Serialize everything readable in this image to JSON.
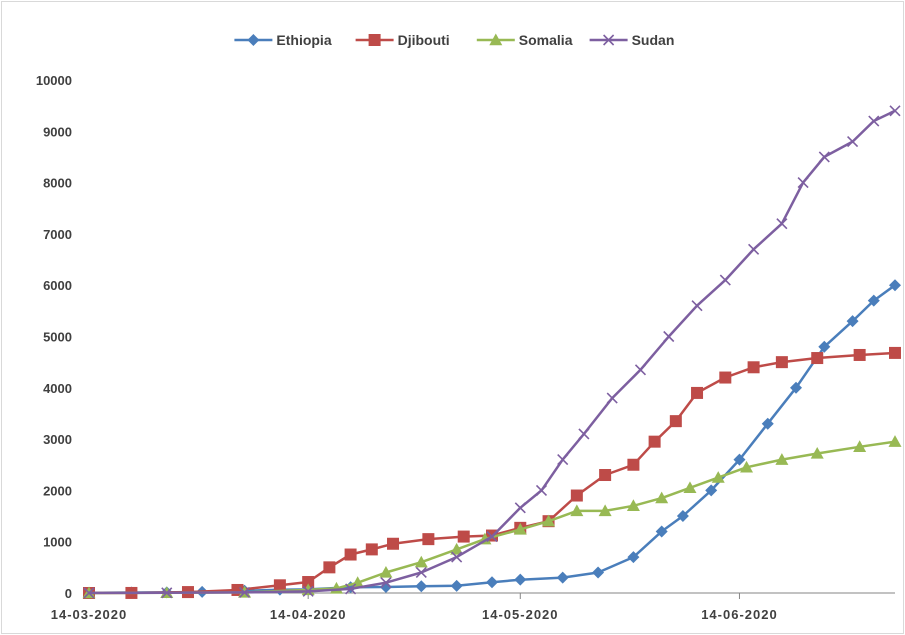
{
  "chart_data": {
    "type": "line",
    "title": "",
    "xlabel": "",
    "ylabel": "",
    "ylim": [
      0,
      10000
    ],
    "y_ticks": [
      0,
      1000,
      2000,
      3000,
      4000,
      5000,
      6000,
      7000,
      8000,
      9000,
      10000
    ],
    "x_range": [
      "2020-03-14",
      "2020-07-06"
    ],
    "x_ticks": [
      "14-03-2020",
      "14-04-2020",
      "14-05-2020",
      "14-06-2020"
    ],
    "grid": false,
    "legend_position": "top",
    "series": [
      {
        "name": "Ethiopia",
        "color": "#4a7ebb",
        "marker": "diamond",
        "points": [
          [
            "2020-03-14",
            1
          ],
          [
            "2020-03-20",
            9
          ],
          [
            "2020-03-25",
            12
          ],
          [
            "2020-03-30",
            21
          ],
          [
            "2020-04-05",
            43
          ],
          [
            "2020-04-10",
            65
          ],
          [
            "2020-04-14",
            71
          ],
          [
            "2020-04-20",
            111
          ],
          [
            "2020-04-25",
            116
          ],
          [
            "2020-04-30",
            131
          ],
          [
            "2020-05-05",
            140
          ],
          [
            "2020-05-10",
            210
          ],
          [
            "2020-05-14",
            260
          ],
          [
            "2020-05-20",
            300
          ],
          [
            "2020-05-25",
            400
          ],
          [
            "2020-05-30",
            700
          ],
          [
            "2020-06-03",
            1200
          ],
          [
            "2020-06-06",
            1500
          ],
          [
            "2020-06-10",
            2000
          ],
          [
            "2020-06-14",
            2600
          ],
          [
            "2020-06-18",
            3300
          ],
          [
            "2020-06-22",
            4000
          ],
          [
            "2020-06-26",
            4800
          ],
          [
            "2020-06-30",
            5300
          ],
          [
            "2020-07-03",
            5700
          ],
          [
            "2020-07-06",
            6000
          ]
        ]
      },
      {
        "name": "Djibouti",
        "color": "#be4b48",
        "marker": "square",
        "points": [
          [
            "2020-03-14",
            0
          ],
          [
            "2020-03-20",
            1
          ],
          [
            "2020-03-28",
            18
          ],
          [
            "2020-04-04",
            59
          ],
          [
            "2020-04-10",
            150
          ],
          [
            "2020-04-14",
            214
          ],
          [
            "2020-04-17",
            500
          ],
          [
            "2020-04-20",
            750
          ],
          [
            "2020-04-23",
            850
          ],
          [
            "2020-04-26",
            960
          ],
          [
            "2020-05-01",
            1050
          ],
          [
            "2020-05-06",
            1100
          ],
          [
            "2020-05-10",
            1120
          ],
          [
            "2020-05-14",
            1270
          ],
          [
            "2020-05-18",
            1400
          ],
          [
            "2020-05-22",
            1900
          ],
          [
            "2020-05-26",
            2300
          ],
          [
            "2020-05-30",
            2500
          ],
          [
            "2020-06-02",
            2950
          ],
          [
            "2020-06-05",
            3350
          ],
          [
            "2020-06-08",
            3900
          ],
          [
            "2020-06-12",
            4200
          ],
          [
            "2020-06-16",
            4400
          ],
          [
            "2020-06-20",
            4500
          ],
          [
            "2020-06-25",
            4580
          ],
          [
            "2020-07-01",
            4640
          ],
          [
            "2020-07-06",
            4680
          ]
        ]
      },
      {
        "name": "Somalia",
        "color": "#98b954",
        "marker": "triangle",
        "points": [
          [
            "2020-03-14",
            0
          ],
          [
            "2020-03-25",
            3
          ],
          [
            "2020-04-05",
            12
          ],
          [
            "2020-04-14",
            60
          ],
          [
            "2020-04-18",
            90
          ],
          [
            "2020-04-21",
            200
          ],
          [
            "2020-04-25",
            400
          ],
          [
            "2020-04-30",
            600
          ],
          [
            "2020-05-05",
            850
          ],
          [
            "2020-05-09",
            1050
          ],
          [
            "2020-05-14",
            1240
          ],
          [
            "2020-05-18",
            1400
          ],
          [
            "2020-05-22",
            1600
          ],
          [
            "2020-05-26",
            1600
          ],
          [
            "2020-05-30",
            1700
          ],
          [
            "2020-06-03",
            1850
          ],
          [
            "2020-06-07",
            2050
          ],
          [
            "2020-06-11",
            2250
          ],
          [
            "2020-06-15",
            2450
          ],
          [
            "2020-06-20",
            2600
          ],
          [
            "2020-06-25",
            2720
          ],
          [
            "2020-07-01",
            2850
          ],
          [
            "2020-07-06",
            2950
          ]
        ]
      },
      {
        "name": "Sudan",
        "color": "#7d5fa0",
        "marker": "cross",
        "points": [
          [
            "2020-03-14",
            1
          ],
          [
            "2020-03-25",
            3
          ],
          [
            "2020-04-05",
            12
          ],
          [
            "2020-04-14",
            32
          ],
          [
            "2020-04-20",
            80
          ],
          [
            "2020-04-25",
            200
          ],
          [
            "2020-04-30",
            400
          ],
          [
            "2020-05-05",
            700
          ],
          [
            "2020-05-10",
            1100
          ],
          [
            "2020-05-14",
            1660
          ],
          [
            "2020-05-17",
            2000
          ],
          [
            "2020-05-20",
            2600
          ],
          [
            "2020-05-23",
            3100
          ],
          [
            "2020-05-27",
            3800
          ],
          [
            "2020-05-31",
            4350
          ],
          [
            "2020-06-04",
            5000
          ],
          [
            "2020-06-08",
            5600
          ],
          [
            "2020-06-12",
            6100
          ],
          [
            "2020-06-16",
            6700
          ],
          [
            "2020-06-20",
            7200
          ],
          [
            "2020-06-23",
            8000
          ],
          [
            "2020-06-26",
            8500
          ],
          [
            "2020-06-30",
            8800
          ],
          [
            "2020-07-03",
            9200
          ],
          [
            "2020-07-06",
            9400
          ]
        ]
      }
    ]
  }
}
